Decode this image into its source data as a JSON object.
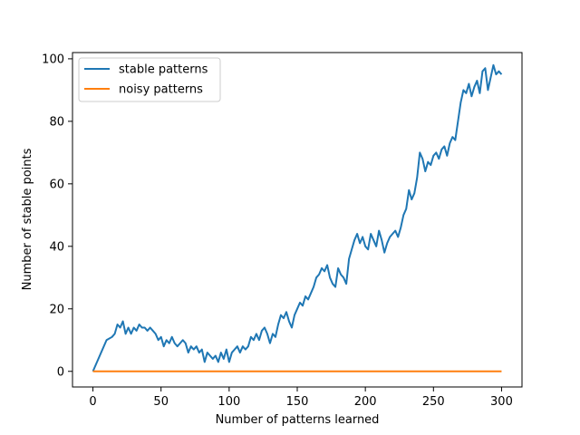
{
  "chart_data": {
    "type": "line",
    "title": "",
    "xlabel": "Number of patterns learned",
    "ylabel": "Number of stable points",
    "xlim": [
      -15,
      315
    ],
    "ylim": [
      -5,
      102
    ],
    "xticks": [
      0,
      50,
      100,
      150,
      200,
      250,
      300
    ],
    "yticks": [
      0,
      20,
      40,
      60,
      80,
      100
    ],
    "grid": false,
    "legend": "top-left",
    "series": [
      {
        "name": "stable patterns",
        "color": "#1f77b4",
        "x": [
          0,
          5,
          10,
          14,
          16,
          18,
          20,
          22,
          24,
          26,
          28,
          30,
          32,
          34,
          36,
          38,
          40,
          42,
          44,
          46,
          48,
          50,
          52,
          54,
          56,
          58,
          60,
          62,
          64,
          66,
          68,
          70,
          72,
          74,
          76,
          78,
          80,
          82,
          84,
          86,
          88,
          90,
          92,
          94,
          96,
          98,
          100,
          102,
          104,
          106,
          108,
          110,
          112,
          114,
          116,
          118,
          120,
          122,
          124,
          126,
          128,
          130,
          132,
          134,
          136,
          138,
          140,
          142,
          144,
          146,
          148,
          150,
          152,
          154,
          156,
          158,
          160,
          162,
          164,
          166,
          168,
          170,
          172,
          174,
          176,
          178,
          180,
          182,
          184,
          186,
          188,
          190,
          192,
          194,
          196,
          198,
          200,
          202,
          204,
          206,
          208,
          210,
          212,
          214,
          216,
          218,
          220,
          222,
          224,
          226,
          228,
          230,
          232,
          234,
          236,
          238,
          240,
          242,
          244,
          246,
          248,
          250,
          252,
          254,
          256,
          258,
          260,
          262,
          264,
          266,
          268,
          270,
          272,
          274,
          276,
          278,
          280,
          282,
          284,
          286,
          288,
          290,
          292,
          294,
          296,
          298,
          300
        ],
        "values": [
          0,
          5,
          10,
          11,
          12,
          15,
          14,
          16,
          12,
          14,
          12,
          14,
          13,
          15,
          14,
          14,
          13,
          14,
          13,
          12,
          10,
          11,
          8,
          10,
          9,
          11,
          9,
          8,
          9,
          10,
          9,
          6,
          8,
          7,
          8,
          6,
          7,
          3,
          6,
          5,
          4,
          5,
          3,
          6,
          4,
          7,
          3,
          6,
          7,
          8,
          6,
          8,
          7,
          8,
          11,
          10,
          12,
          10,
          13,
          14,
          12,
          9,
          12,
          11,
          15,
          18,
          17,
          19,
          16,
          14,
          18,
          20,
          22,
          21,
          24,
          23,
          25,
          27,
          30,
          31,
          33,
          32,
          34,
          30,
          28,
          27,
          33,
          31,
          30,
          28,
          36,
          39,
          42,
          44,
          41,
          43,
          40,
          39,
          44,
          42,
          40,
          45,
          42,
          38,
          41,
          43,
          44,
          45,
          43,
          46,
          50,
          52,
          58,
          55,
          57,
          62,
          70,
          68,
          64,
          67,
          66,
          69,
          70,
          68,
          71,
          72,
          69,
          73,
          75,
          74,
          80,
          86,
          90,
          89,
          92,
          88,
          91,
          93,
          89,
          96,
          97,
          90,
          94,
          98,
          95,
          96,
          95
        ]
      },
      {
        "name": "noisy patterns",
        "color": "#ff7f0e",
        "x": [
          0,
          300
        ],
        "values": [
          0,
          0
        ]
      }
    ]
  }
}
